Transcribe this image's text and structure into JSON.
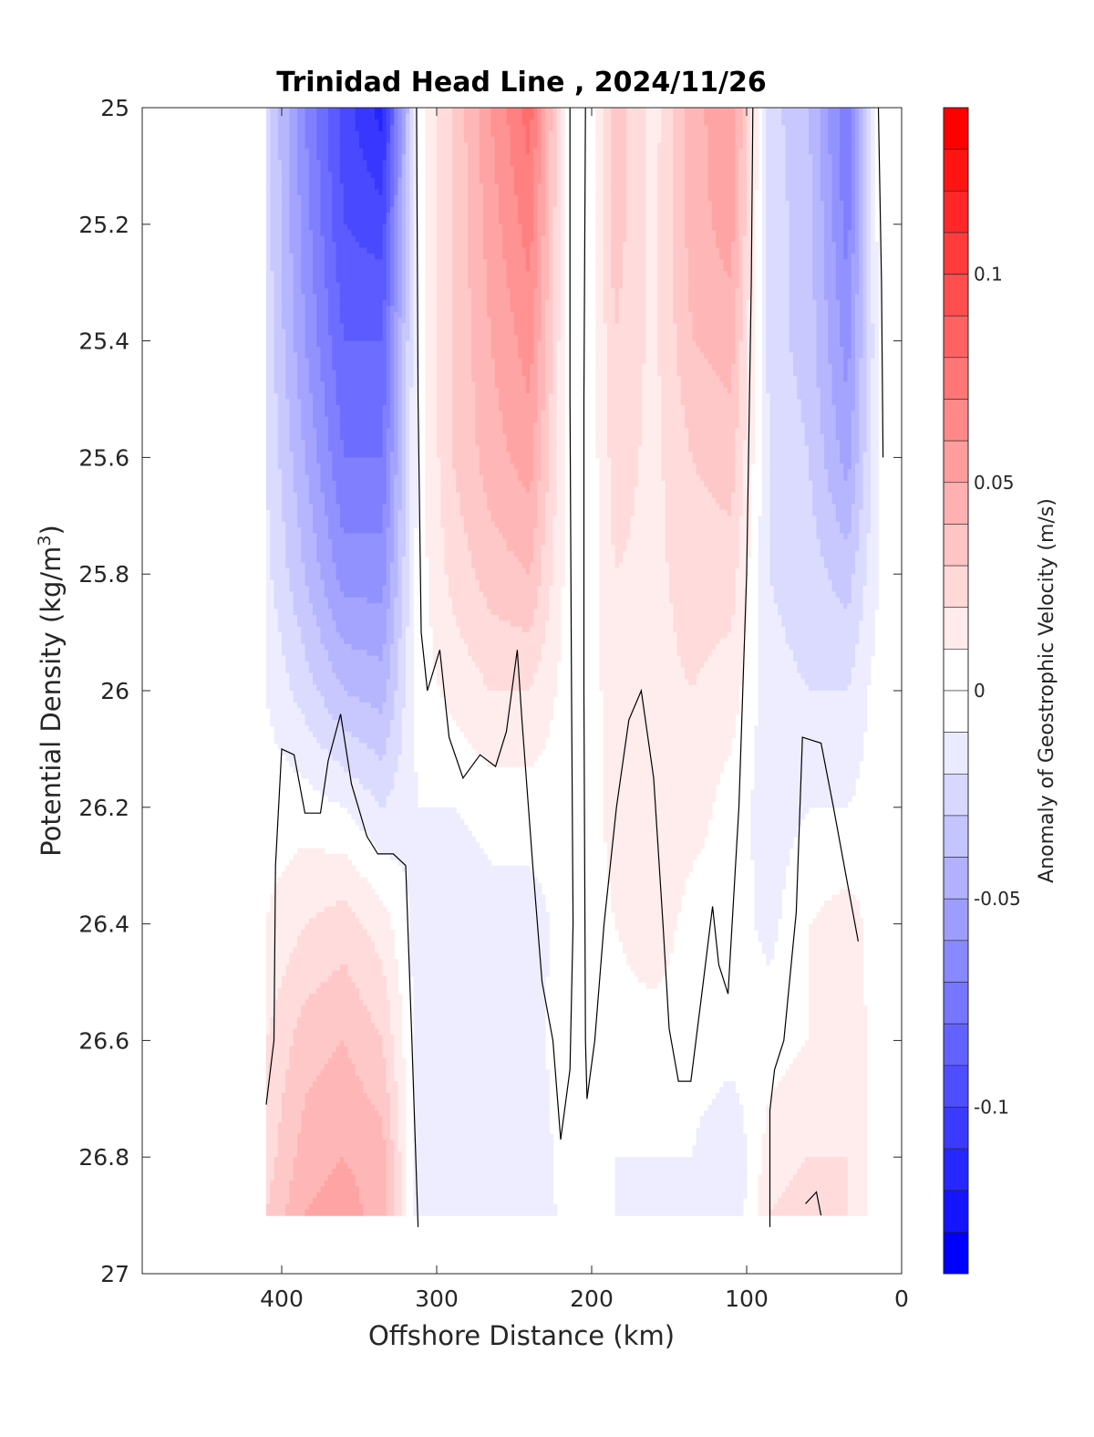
{
  "chart_data": {
    "type": "heatmap",
    "title": "Trinidad Head Line , 2024/11/26",
    "xlabel": "Offshore Distance (km)",
    "ylabel_main": "Potential Density (kg/m",
    "ylabel_sup": "3",
    "ylabel_close": ")",
    "xlim": [
      490,
      0
    ],
    "ylim": [
      25,
      27
    ],
    "x_reversed": true,
    "y_reversed": true,
    "x_ticks": [
      400,
      300,
      200,
      100,
      0
    ],
    "x_tick_labels": [
      "400",
      "300",
      "200",
      "100",
      "0"
    ],
    "y_ticks": [
      25,
      25.2,
      25.4,
      25.6,
      25.8,
      26,
      26.2,
      26.4,
      26.6,
      26.8,
      27
    ],
    "y_tick_labels": [
      "25",
      "25.2",
      "25.4",
      "25.6",
      "25.8",
      "26",
      "26.2",
      "26.4",
      "26.6",
      "26.8",
      "27"
    ],
    "colorbar": {
      "label": "Anomaly of Geostrophic Velocity (m/s)",
      "range": [
        -0.14,
        0.14
      ],
      "step": 0.01,
      "ticks": [
        0.1,
        0.05,
        0,
        -0.05,
        -0.1
      ],
      "tick_labels": [
        "0.1",
        "0.05",
        "0",
        "-0.05",
        "-0.1"
      ],
      "negative_color": "#0000ff",
      "positive_color": "#ff0000",
      "zero_color": "#ffffff"
    },
    "grid": false,
    "zero_contour": true,
    "x": [
      410,
      385,
      360,
      335,
      312,
      290,
      265,
      240,
      215,
      200,
      185,
      160,
      135,
      110,
      85,
      60,
      35,
      15
    ],
    "y": [
      25.0,
      25.2,
      25.4,
      25.6,
      25.8,
      26.0,
      26.2,
      26.4,
      26.6,
      26.8,
      26.9
    ],
    "values": [
      [
        -0.02,
        -0.065,
        -0.1,
        -0.12,
        0.0,
        0.025,
        0.055,
        0.08,
        0.0,
        0.0,
        0.03,
        0.01,
        0.04,
        0.055,
        -0.02,
        -0.035,
        -0.075,
        0.0
      ],
      [
        -0.02,
        -0.06,
        -0.095,
        -0.1,
        0.0,
        0.025,
        0.05,
        0.07,
        0.0,
        0.0,
        0.03,
        0.012,
        0.04,
        0.05,
        -0.02,
        -0.03,
        -0.07,
        0.0
      ],
      [
        -0.018,
        -0.055,
        -0.085,
        -0.085,
        0.0,
        0.025,
        0.045,
        0.06,
        0.0,
        0.0,
        0.025,
        0.012,
        0.035,
        0.04,
        -0.02,
        -0.03,
        -0.06,
        -0.005
      ],
      [
        -0.015,
        -0.045,
        -0.075,
        -0.075,
        0.0,
        0.025,
        0.04,
        0.05,
        0.0,
        0.0,
        0.02,
        0.012,
        0.025,
        0.03,
        -0.015,
        -0.025,
        -0.05,
        -0.005
      ],
      [
        -0.012,
        -0.035,
        -0.06,
        -0.06,
        0.0,
        0.018,
        0.03,
        0.035,
        0.0,
        0.0,
        0.015,
        0.012,
        0.02,
        0.02,
        -0.015,
        -0.02,
        -0.03,
        -0.005
      ],
      [
        -0.005,
        -0.02,
        -0.035,
        -0.04,
        0.0,
        0.008,
        0.015,
        0.015,
        0.0,
        0.0,
        0.012,
        0.012,
        0.015,
        0.01,
        -0.012,
        -0.015,
        -0.015,
        0.0
      ],
      [
        0.0,
        0.0,
        -0.005,
        -0.015,
        -0.005,
        -0.005,
        0.0,
        0.0,
        0.0,
        0.0,
        0.01,
        0.012,
        0.01,
        0.0,
        -0.01,
        -0.005,
        -0.005,
        0.0
      ],
      [
        0.005,
        0.015,
        0.02,
        0.01,
        -0.01,
        -0.015,
        -0.01,
        -0.01,
        0.0,
        0.0,
        0.005,
        0.012,
        0.0,
        0.0,
        -0.008,
        0.005,
        0.01,
        0.0
      ],
      [
        0.015,
        0.03,
        0.035,
        0.025,
        -0.01,
        -0.012,
        -0.012,
        -0.008,
        0.0,
        0.0,
        0.0,
        0.0,
        0.0,
        0.0,
        0.0,
        0.005,
        0.012,
        0.0
      ],
      [
        0.02,
        0.04,
        0.045,
        0.04,
        -0.01,
        -0.015,
        -0.012,
        -0.012,
        0.0,
        0.0,
        -0.005,
        -0.005,
        -0.005,
        -0.015,
        0.01,
        0.015,
        0.015,
        0.0
      ],
      [
        0.025,
        0.045,
        0.05,
        0.04,
        -0.01,
        -0.015,
        -0.012,
        -0.015,
        0.0,
        0.0,
        -0.005,
        -0.005,
        -0.005,
        -0.015,
        0.015,
        0.02,
        0.015,
        0.0
      ]
    ],
    "data_y_max": 26.9,
    "data_x_max": 410,
    "data_x_min": 15,
    "zero_contour_lines": [
      [
        [
          410,
          26.71
        ],
        [
          405,
          26.6
        ],
        [
          404,
          26.3
        ],
        [
          400,
          26.1
        ],
        [
          392,
          26.11
        ],
        [
          385,
          26.21
        ],
        [
          375,
          26.21
        ],
        [
          370,
          26.12
        ],
        [
          362,
          26.04
        ],
        [
          355,
          26.16
        ],
        [
          345,
          26.25
        ],
        [
          338,
          26.28
        ],
        [
          328,
          26.28
        ],
        [
          320,
          26.3
        ],
        [
          318,
          26.45
        ],
        [
          316,
          26.6
        ],
        [
          312,
          26.92
        ]
      ],
      [
        [
          313,
          25.0
        ],
        [
          312,
          25.5
        ],
        [
          310,
          25.9
        ],
        [
          306,
          26.0
        ],
        [
          298,
          25.93
        ],
        [
          292,
          26.08
        ],
        [
          283,
          26.15
        ],
        [
          272,
          26.11
        ],
        [
          262,
          26.13
        ],
        [
          255,
          26.07
        ],
        [
          248,
          25.93
        ],
        [
          245,
          26.05
        ],
        [
          238,
          26.3
        ],
        [
          232,
          26.5
        ],
        [
          225,
          26.6
        ],
        [
          220,
          26.77
        ],
        [
          214,
          26.65
        ],
        [
          212,
          26.4
        ],
        [
          213,
          26.0
        ],
        [
          214,
          25.5
        ],
        [
          214,
          25.0
        ]
      ],
      [
        [
          204,
          25.0
        ],
        [
          205,
          25.5
        ],
        [
          205,
          26.0
        ],
        [
          204,
          26.6
        ],
        [
          203,
          26.7
        ]
      ],
      [
        [
          203,
          26.7
        ],
        [
          198,
          26.6
        ],
        [
          192,
          26.4
        ],
        [
          184,
          26.2
        ],
        [
          176,
          26.05
        ],
        [
          168,
          26.0
        ],
        [
          160,
          26.15
        ],
        [
          154,
          26.4
        ],
        [
          150,
          26.58
        ],
        [
          144,
          26.67
        ],
        [
          136,
          26.67
        ],
        [
          128,
          26.5
        ],
        [
          122,
          26.37
        ],
        [
          118,
          26.47
        ],
        [
          112,
          26.52
        ],
        [
          105,
          26.2
        ],
        [
          100,
          25.8
        ],
        [
          97,
          25.3
        ],
        [
          96,
          25.0
        ]
      ],
      [
        [
          62,
          26.88
        ],
        [
          55,
          26.86
        ],
        [
          52,
          26.9
        ]
      ],
      [
        [
          85,
          26.92
        ],
        [
          85,
          26.72
        ],
        [
          82,
          26.65
        ],
        [
          76,
          26.6
        ],
        [
          68,
          26.38
        ],
        [
          64,
          26.08
        ],
        [
          52,
          26.09
        ],
        [
          44,
          26.2
        ],
        [
          35,
          26.33
        ],
        [
          28,
          26.43
        ]
      ],
      [
        [
          15,
          25.0
        ],
        [
          13,
          25.3
        ],
        [
          12,
          25.6
        ]
      ]
    ]
  }
}
